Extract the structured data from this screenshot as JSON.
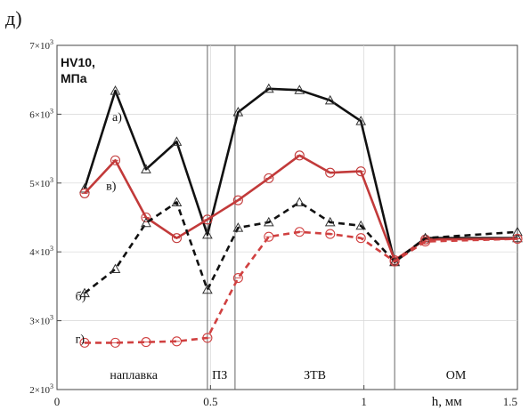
{
  "panel_label": "д)",
  "chart_data": {
    "type": "line",
    "title": "",
    "ylabel_lines": [
      "HV10,",
      "МПа"
    ],
    "xlabel": "h, мм",
    "xlim": [
      0,
      1.5
    ],
    "ylim": [
      2000,
      7000
    ],
    "x_ticks": [
      {
        "value": 0,
        "label": "0"
      },
      {
        "value": 0.5,
        "label": "0.5"
      },
      {
        "value": 1,
        "label": "1"
      },
      {
        "value": 1.5,
        "label": "1.5"
      }
    ],
    "y_ticks": [
      {
        "value": 2000,
        "mantissa": "2×10",
        "exp": "3"
      },
      {
        "value": 3000,
        "mantissa": "3×10",
        "exp": "3"
      },
      {
        "value": 4000,
        "mantissa": "4×10",
        "exp": "3"
      },
      {
        "value": 5000,
        "mantissa": "5×10",
        "exp": "3"
      },
      {
        "value": 6000,
        "mantissa": "6×10",
        "exp": "3"
      },
      {
        "value": 7000,
        "mantissa": "7×10",
        "exp": "3"
      }
    ],
    "zone_boundaries": [
      0.49,
      0.58,
      1.1
    ],
    "zones": [
      {
        "label": "наплавка",
        "x": 0.25
      },
      {
        "label": "ПЗ",
        "x": 0.53
      },
      {
        "label": "ЗТВ",
        "x": 0.84
      },
      {
        "label": "ОМ",
        "x": 1.3
      }
    ],
    "series": [
      {
        "name": "а)",
        "color": "#111111",
        "dash": "solid",
        "marker": "triangle",
        "label_at": {
          "x": 0.18,
          "y": 5900
        },
        "x": [
          0.09,
          0.19,
          0.29,
          0.39,
          0.49,
          0.59,
          0.69,
          0.79,
          0.89,
          0.99,
          1.1,
          1.2,
          1.5
        ],
        "y": [
          4920,
          6340,
          5200,
          5600,
          4250,
          6030,
          6370,
          6350,
          6200,
          5900,
          3850,
          4200,
          4200
        ]
      },
      {
        "name": "в)",
        "color": "#c23a3a",
        "dash": "solid",
        "marker": "circle",
        "label_at": {
          "x": 0.16,
          "y": 4900
        },
        "x": [
          0.09,
          0.19,
          0.29,
          0.39,
          0.49,
          0.59,
          0.69,
          0.79,
          0.89,
          0.99,
          1.1,
          1.2,
          1.5
        ],
        "y": [
          4850,
          5330,
          4500,
          4200,
          4470,
          4750,
          5070,
          5400,
          5150,
          5170,
          3880,
          4180,
          4190
        ]
      },
      {
        "name": "б)",
        "color": "#111111",
        "dash": "dashed",
        "marker": "triangle",
        "label_at": {
          "x": 0.06,
          "y": 3300
        },
        "x": [
          0.09,
          0.19,
          0.29,
          0.39,
          0.49,
          0.59,
          0.69,
          0.79,
          0.89,
          0.99,
          1.1,
          1.2,
          1.5
        ],
        "y": [
          3400,
          3750,
          4420,
          4720,
          3450,
          4350,
          4430,
          4720,
          4430,
          4380,
          3860,
          4200,
          4290
        ]
      },
      {
        "name": "г)",
        "color": "#d04040",
        "dash": "dashed",
        "marker": "circle",
        "label_at": {
          "x": 0.06,
          "y": 2680
        },
        "x": [
          0.09,
          0.19,
          0.29,
          0.39,
          0.49,
          0.59,
          0.69,
          0.79,
          0.89,
          0.99,
          1.1,
          1.2,
          1.5
        ],
        "y": [
          2680,
          2680,
          2690,
          2700,
          2750,
          3620,
          4220,
          4290,
          4260,
          4200,
          3860,
          4150,
          4190
        ]
      }
    ]
  }
}
